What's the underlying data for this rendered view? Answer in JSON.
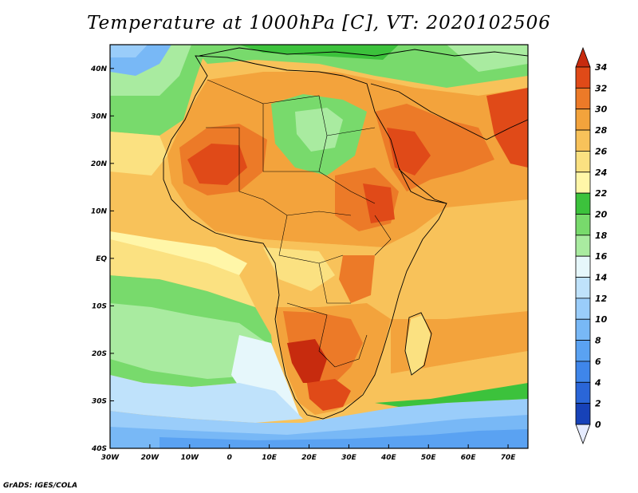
{
  "title": "Temperature at 1000hPa [C], VT: 2020102506",
  "credit": "GrADS: IGES/COLA",
  "map": {
    "lon_range": [
      -30,
      75
    ],
    "lat_range": [
      -40,
      45
    ],
    "lon_ticks": [
      {
        "v": -30,
        "label": "30W"
      },
      {
        "v": -20,
        "label": "20W"
      },
      {
        "v": -10,
        "label": "10W"
      },
      {
        "v": 0,
        "label": "0"
      },
      {
        "v": 10,
        "label": "10E"
      },
      {
        "v": 20,
        "label": "20E"
      },
      {
        "v": 30,
        "label": "30E"
      },
      {
        "v": 40,
        "label": "40E"
      },
      {
        "v": 50,
        "label": "50E"
      },
      {
        "v": 60,
        "label": "60E"
      },
      {
        "v": 70,
        "label": "70E"
      }
    ],
    "lat_ticks": [
      {
        "v": 40,
        "label": "40N"
      },
      {
        "v": 30,
        "label": "30N"
      },
      {
        "v": 20,
        "label": "20N"
      },
      {
        "v": 10,
        "label": "10N"
      },
      {
        "v": 0,
        "label": "EQ"
      },
      {
        "v": -10,
        "label": "10S"
      },
      {
        "v": -20,
        "label": "20S"
      },
      {
        "v": -30,
        "label": "30S"
      },
      {
        "v": -40,
        "label": "40S"
      }
    ]
  },
  "colorbar": {
    "levels": [
      0,
      2,
      4,
      6,
      8,
      10,
      12,
      14,
      16,
      18,
      20,
      22,
      24,
      26,
      28,
      30,
      32,
      34
    ],
    "colors": [
      "#0a1f78",
      "#1742b8",
      "#2a66d8",
      "#3f86ea",
      "#5aa2f2",
      "#78b8f6",
      "#9acdfa",
      "#bfe2fb",
      "#e6f7fb",
      "#a9eba0",
      "#78da6c",
      "#3cc23c",
      "#fff6a8",
      "#fbe181",
      "#f8c25a",
      "#f3a33c",
      "#ec7a28",
      "#e04a18",
      "#c72b0e"
    ]
  },
  "regions": [
    {
      "name": "ocean-north-atlantic-temperate",
      "color": "#78da6c"
    },
    {
      "name": "ocean-south-atlantic-warm",
      "color": "#f8c25a"
    },
    {
      "name": "sahara-hot",
      "color": "#e04a18"
    },
    {
      "name": "southern-africa-hot",
      "color": "#c72b0e"
    },
    {
      "name": "southern-ocean-cool",
      "color": "#78b8f6"
    }
  ]
}
